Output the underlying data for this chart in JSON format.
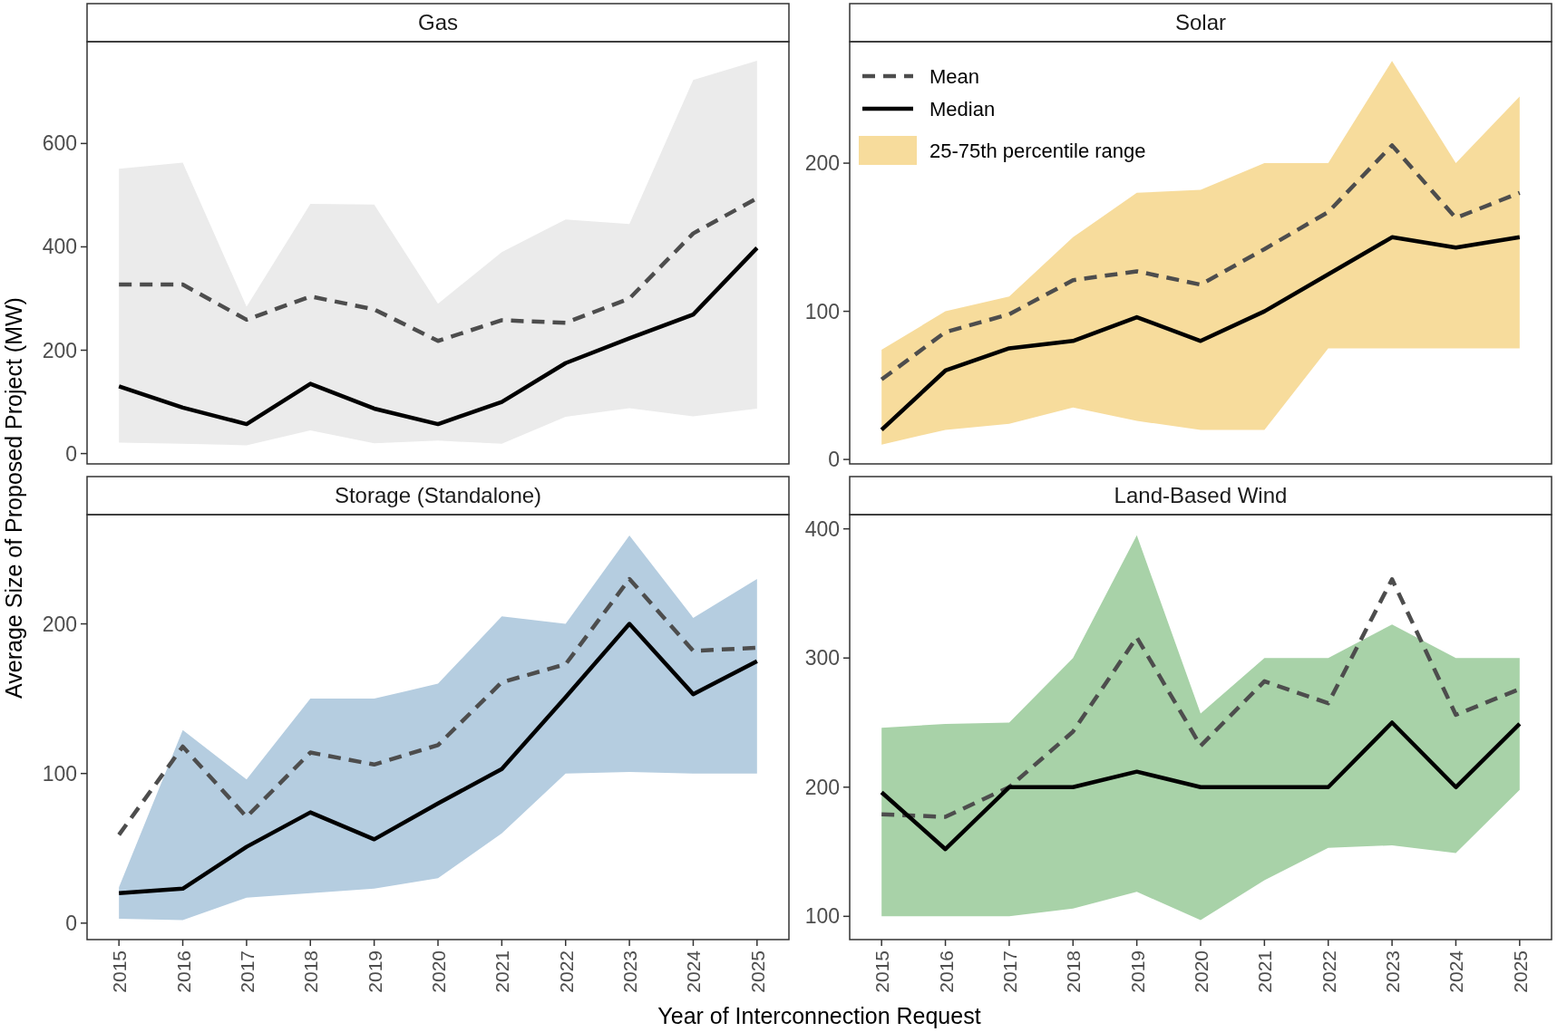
{
  "chart_data": [
    {
      "type": "line",
      "title": "Gas",
      "ylabel": "Average Size of Proposed Project (MW)",
      "categories": [
        "2015",
        "2016",
        "2017",
        "2018",
        "2019",
        "2020",
        "2021",
        "2022",
        "2023",
        "2024",
        "2025"
      ],
      "ylim": [
        -20,
        797
      ],
      "yticks": [
        0,
        200,
        400,
        600
      ],
      "tick_labels": "y",
      "grid": false,
      "colors": [
        "#ebebeb"
      ],
      "series": [
        {
          "type": "line",
          "color": "#4d4d4d",
          "line_style": "dashed",
          "values": [
            327,
            327,
            259,
            304,
            279,
            218,
            258,
            253,
            300,
            426,
            494
          ]
        },
        {
          "type": "line",
          "color": "#000000",
          "line_style": "solid",
          "values": [
            130,
            89,
            57,
            135,
            87,
            57,
            100,
            175,
            223,
            269,
            398
          ],
          "lower": [
            21,
            19,
            16,
            45,
            20,
            25,
            19,
            71,
            88,
            72,
            87
          ],
          "upper": [
            551,
            563,
            284,
            483,
            482,
            290,
            390,
            453,
            444,
            723,
            760
          ]
        }
      ]
    },
    {
      "type": "line",
      "title": "Solar",
      "categories": [
        "2015",
        "2016",
        "2017",
        "2018",
        "2019",
        "2020",
        "2021",
        "2022",
        "2023",
        "2024",
        "2025"
      ],
      "ylim": [
        -3,
        282
      ],
      "yticks": [
        0,
        100,
        200
      ],
      "tick_labels": "y",
      "grid": false,
      "legend": "top left",
      "colors": [
        "#f7dc9c"
      ],
      "annotations": [
        "25-75th percentile range"
      ],
      "series": [
        {
          "type": "line",
          "name": "Mean",
          "color": "#4d4d4d",
          "line_style": "dashed",
          "values": [
            54,
            86,
            98,
            121,
            127,
            118,
            142,
            167,
            212,
            163,
            180
          ]
        },
        {
          "type": "line",
          "name": "Median",
          "color": "#000000",
          "line_style": "solid",
          "values": [
            20,
            60,
            75,
            80,
            96,
            80,
            100,
            125,
            150,
            143,
            150
          ],
          "lower": [
            10,
            20,
            24,
            35,
            26,
            20,
            20,
            75,
            75,
            75,
            75
          ],
          "upper": [
            74,
            100,
            110,
            150,
            180,
            182,
            200,
            200,
            269,
            200,
            245
          ]
        }
      ]
    },
    {
      "type": "line",
      "title": "Storage (Standalone)",
      "xlabel": "Year of Interconnection Request",
      "categories": [
        "2015",
        "2016",
        "2017",
        "2018",
        "2019",
        "2020",
        "2021",
        "2022",
        "2023",
        "2024",
        "2025"
      ],
      "ylim": [
        -11,
        273
      ],
      "yticks": [
        0,
        100,
        200
      ],
      "grid": false,
      "colors": [
        "#b5cde0"
      ],
      "series": [
        {
          "type": "line",
          "color": "#4d4d4d",
          "line_style": "dashed",
          "values": [
            59,
            118,
            71,
            114,
            106,
            119,
            161,
            173,
            230,
            182,
            184
          ]
        },
        {
          "type": "line",
          "color": "#000000",
          "line_style": "solid",
          "values": [
            20,
            23,
            51,
            74,
            56,
            80,
            103,
            151,
            200,
            153,
            175
          ],
          "lower": [
            3,
            2,
            17,
            20,
            23,
            30,
            60,
            100,
            101,
            100,
            100
          ],
          "upper": [
            24,
            129,
            96,
            150,
            150,
            160,
            205,
            200,
            259,
            204,
            230
          ]
        }
      ]
    },
    {
      "type": "line",
      "title": "Land-Based Wind",
      "categories": [
        "2015",
        "2016",
        "2017",
        "2018",
        "2019",
        "2020",
        "2021",
        "2022",
        "2023",
        "2024",
        "2025"
      ],
      "ylim": [
        82,
        411
      ],
      "yticks": [
        100,
        200,
        300,
        400
      ],
      "grid": false,
      "colors": [
        "#a8d2a8"
      ],
      "series": [
        {
          "type": "line",
          "color": "#4d4d4d",
          "line_style": "dashed",
          "values": [
            179,
            177,
            200,
            243,
            316,
            232,
            282,
            265,
            361,
            256,
            276
          ]
        },
        {
          "type": "line",
          "color": "#000000",
          "line_style": "solid",
          "values": [
            196,
            152,
            200,
            200,
            212,
            200,
            200,
            200,
            250,
            200,
            249
          ],
          "lower": [
            100,
            100,
            100,
            106,
            119,
            97,
            128,
            153,
            155,
            149,
            198
          ],
          "upper": [
            246,
            249,
            250,
            300,
            395,
            257,
            300,
            300,
            326,
            300,
            300
          ]
        }
      ]
    }
  ]
}
